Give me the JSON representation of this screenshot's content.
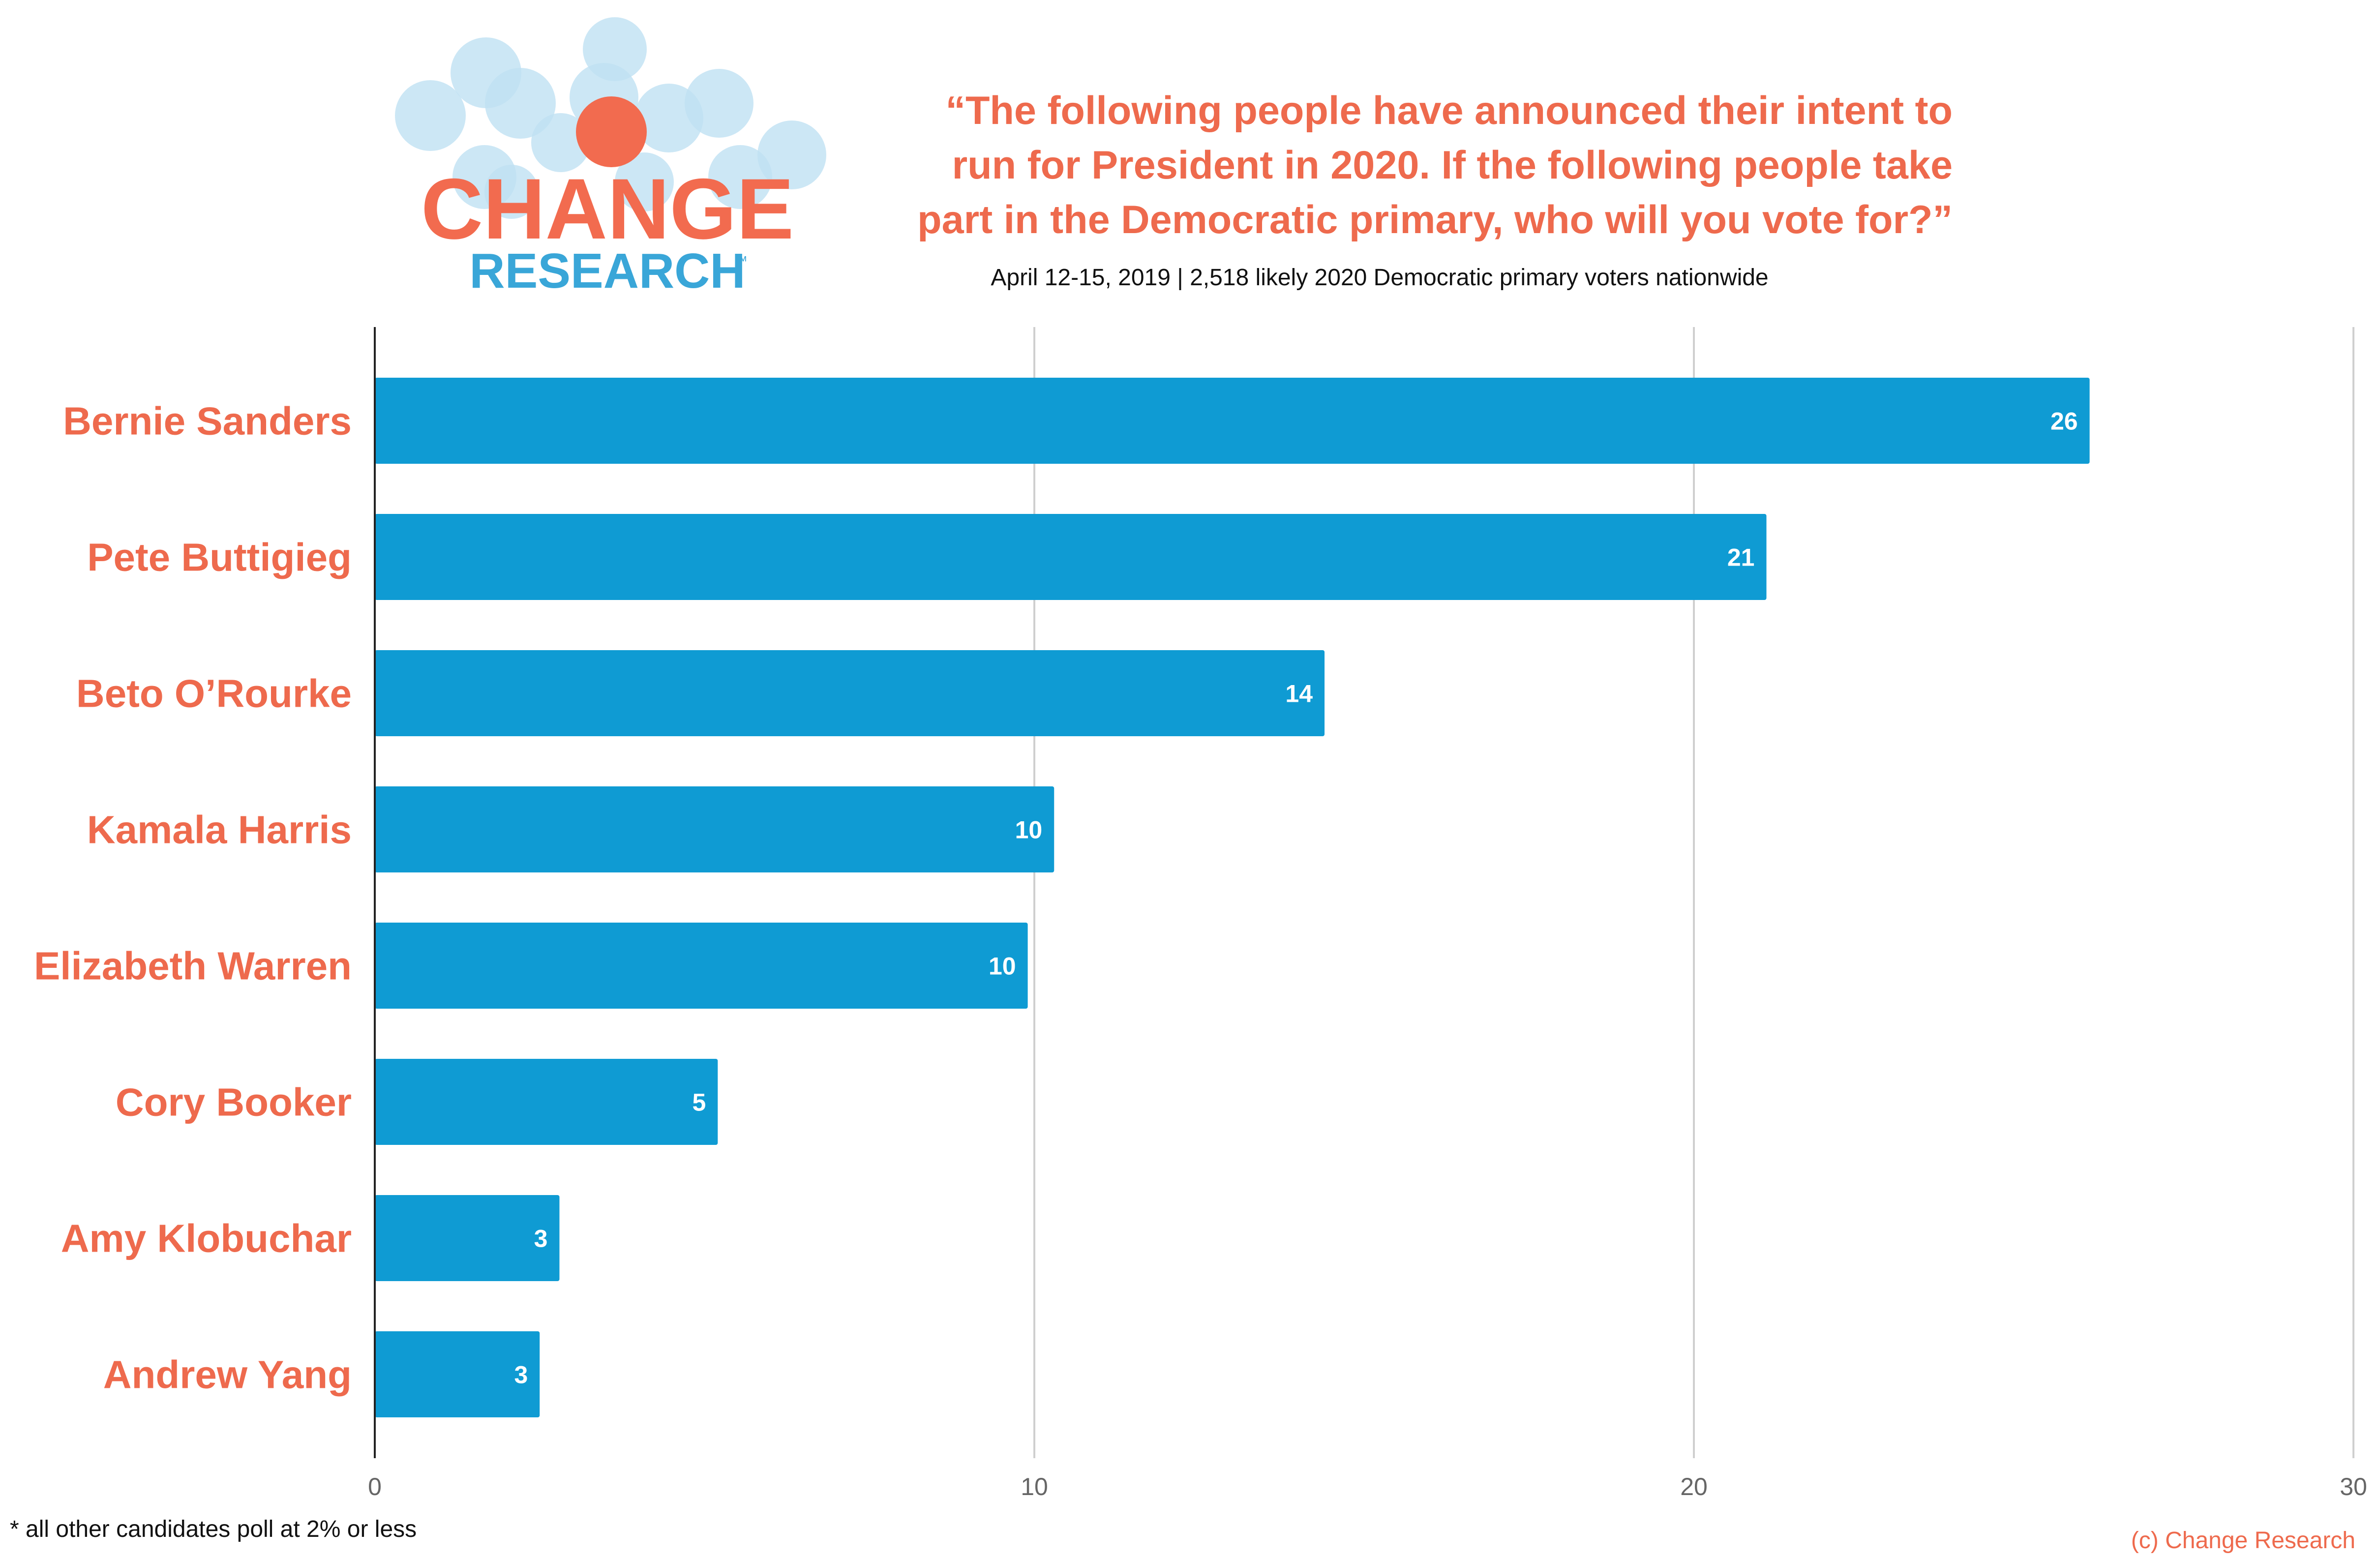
{
  "logo": {
    "word1": "CHANGE",
    "word2": "RESEARCH",
    "tm": "™"
  },
  "title_lines": [
    "“The following people have announced their intent to",
    "run for President in 2020. If the following people take",
    "part in the Democratic primary, who will you vote for?”"
  ],
  "subtitle": "April 12-15, 2019  | 2,518 likely 2020 Democratic primary voters nationwide",
  "footnote": "* all other candidates poll at 2% or less",
  "credit": "(c) Change Research",
  "colors": {
    "bar": "#0f9bd3",
    "label": "#ee6a4d",
    "grid": "#cfcfcf",
    "axis": "#222222",
    "tick": "#666666",
    "logo_orange": "#f26b4f",
    "logo_blue": "#39a6d8",
    "logo_bubble": "#bfe1f3"
  },
  "chart_data": {
    "type": "bar",
    "orientation": "horizontal",
    "categories": [
      "Bernie Sanders",
      "Pete Buttigieg",
      "Beto O’Rourke",
      "Kamala Harris",
      "Elizabeth Warren",
      "Cory Booker",
      "Amy Klobuchar",
      "Andrew Yang"
    ],
    "values": [
      26,
      21.1,
      14.4,
      10.3,
      9.9,
      5.2,
      2.8,
      2.5
    ],
    "data_labels": [
      "26",
      "21",
      "14",
      "10",
      "10",
      "5",
      "3",
      "3"
    ],
    "xlim": [
      0,
      30
    ],
    "x_ticks": [
      0,
      10,
      20,
      30
    ],
    "grid": true,
    "legend": "none"
  }
}
